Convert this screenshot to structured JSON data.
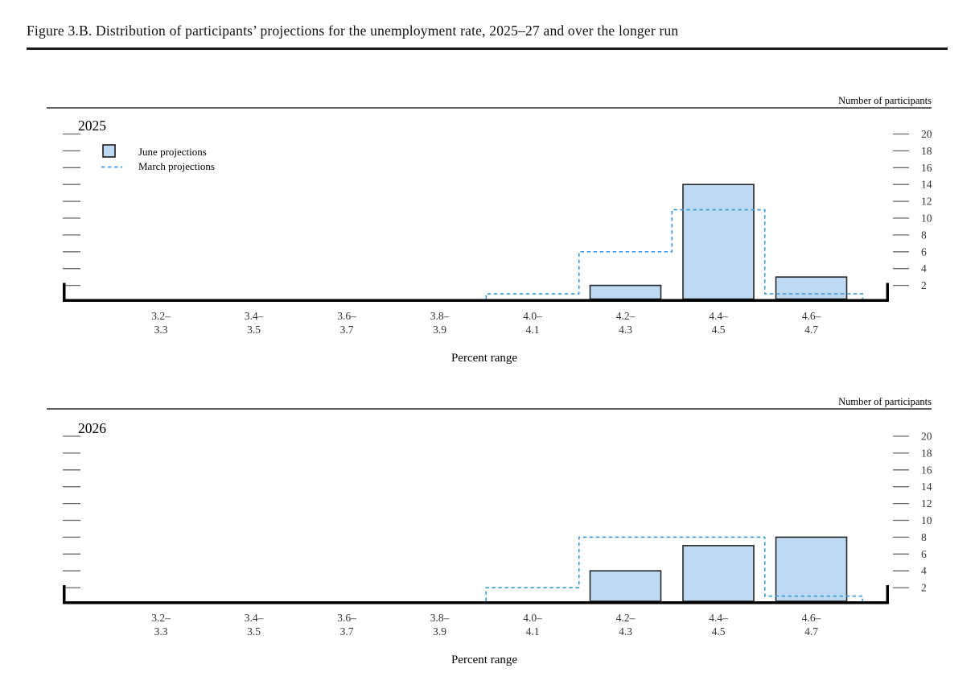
{
  "figure": {
    "title": "Figure 3.B. Distribution of participants’ projections for the unemployment rate, 2025–27 and over the longer run"
  },
  "colors": {
    "bar_fill": "#bedaf3",
    "bar_border": "#262626",
    "march_line": "#3f9bd5",
    "axis": "#000000",
    "tick": "#6a6a6a",
    "border": "#2b2b2b",
    "label_text": "#333333"
  },
  "chart_data": {
    "type": "bar",
    "x_axis_label": "Percent range",
    "right_axis_label": "Number of participants",
    "categories": [
      [
        "3.2–",
        "3.3"
      ],
      [
        "3.4–",
        "3.5"
      ],
      [
        "3.6–",
        "3.7"
      ],
      [
        "3.8–",
        "3.9"
      ],
      [
        "4.0–",
        "4.1"
      ],
      [
        "4.2–",
        "4.3"
      ],
      [
        "4.4–",
        "4.5"
      ],
      [
        "4.6–",
        "4.7"
      ]
    ],
    "yticks": [
      2,
      4,
      6,
      8,
      10,
      12,
      14,
      16,
      18,
      20
    ],
    "ylim": [
      0,
      22
    ],
    "legend": [
      {
        "swatch": "box",
        "label": "June projections"
      },
      {
        "swatch": "dash",
        "label": "March projections"
      }
    ],
    "panels": [
      {
        "label": "2025",
        "series": [
          {
            "name": "June projections",
            "type": "bar",
            "values": [
              0,
              0,
              0,
              0,
              0,
              2,
              14,
              3
            ]
          },
          {
            "name": "March projections",
            "type": "step",
            "values": [
              0,
              0,
              0,
              0,
              1,
              6,
              11,
              1
            ]
          }
        ]
      },
      {
        "label": "2026",
        "series": [
          {
            "name": "June projections",
            "type": "bar",
            "values": [
              0,
              0,
              0,
              0,
              0,
              4,
              7,
              8
            ]
          },
          {
            "name": "March projections",
            "type": "step",
            "values": [
              0,
              0,
              0,
              0,
              2,
              8,
              8,
              1
            ]
          }
        ]
      }
    ]
  }
}
